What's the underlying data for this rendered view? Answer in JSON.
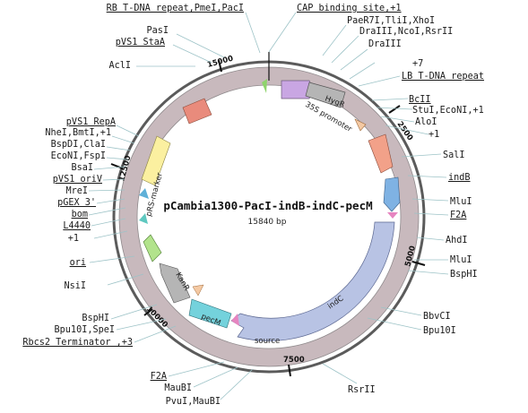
{
  "plasmid": {
    "name": "pCambia1300-PacI-indB-indC-pecM",
    "size_label": "15840 bp"
  },
  "ticks": [
    "2500",
    "5000",
    "7500",
    "10000",
    "12500",
    "15000"
  ],
  "features": {
    "hygr": "HygR",
    "p35s": "35S promoter",
    "prs": "pRS-marker",
    "kanr": "KanR",
    "pecm": "pecM",
    "indc": "indC",
    "source": "source"
  },
  "sites_right": [
    "CAP binding site,+1",
    "PaeR7I,TliI,XhoI",
    "DraIII,NcoI,RsrII",
    "DraIII",
    "+7",
    "LB T-DNA repeat",
    "BcII",
    "StuI,EcoNI,+1",
    "AloI",
    "+1",
    "SalI",
    "indB",
    "MluI",
    "F2A",
    "AhdI",
    "MluI",
    "BspHI",
    "BbvCI",
    "Bpu10I",
    "RsrII"
  ],
  "sites_left": [
    "RB T-DNA repeat,PmeI,PacI",
    "PasI",
    "pVS1 StaA",
    "AclI",
    "pVS1 RepA",
    "NheI,BmtI,+1",
    "BspDI,ClaI",
    "EcoNI,FspI",
    "BsaI",
    "pVS1 oriV",
    "MreI",
    "pGEX 3'",
    "bom",
    "L4440",
    "+1",
    "ori",
    "NsiI",
    "BspHI",
    "Bpu10I,SpeI",
    "Rbcs2 Terminator ,+3",
    "F2A",
    "MauBI",
    "PvuI,MauBI"
  ]
}
